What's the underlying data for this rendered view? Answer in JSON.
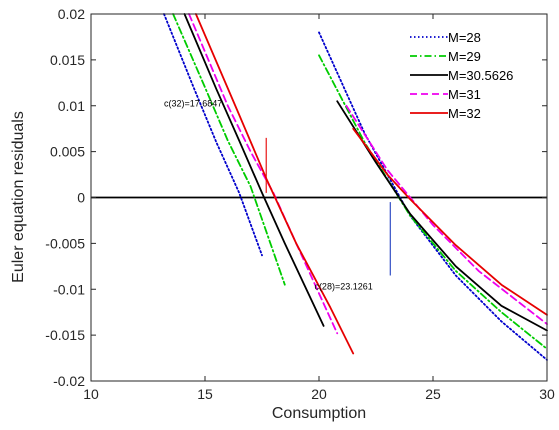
{
  "chart_data": {
    "type": "line",
    "xlabel": "Consumption",
    "ylabel": "Euler equation residuals",
    "xlim": [
      10,
      30
    ],
    "ylim": [
      -0.02,
      0.02
    ],
    "x_ticks": [
      10,
      15,
      20,
      25,
      30
    ],
    "y_ticks": [
      -0.02,
      -0.015,
      -0.01,
      -0.005,
      0,
      0.005,
      0.01,
      0.015,
      0.02
    ],
    "x_tick_labels": [
      "10",
      "15",
      "20",
      "25",
      "30"
    ],
    "y_tick_labels": [
      "-0.02",
      "-0.015",
      "-0.01",
      "-0.005",
      "0",
      "0.005",
      "0.01",
      "0.015",
      "0.02"
    ],
    "grid": false,
    "legend_position": "top-right",
    "zero_line": 0,
    "series": [
      {
        "name": "M=28",
        "color": "#0000cc",
        "dash": "dotted",
        "segments": [
          {
            "x": [
              13.2,
              14.5,
              15.5,
              16.5,
              17.5
            ],
            "y": [
              0.02,
              0.012,
              0.006,
              0.0005,
              -0.0063
            ]
          },
          {
            "x": [
              20.0,
              22.0,
              24.0,
              26.0,
              28.0,
              30.0
            ],
            "y": [
              0.018,
              0.007,
              -0.002,
              -0.0085,
              -0.0135,
              -0.0177
            ]
          }
        ]
      },
      {
        "name": "M=29",
        "color": "#00cc00",
        "dash": "dashdot",
        "segments": [
          {
            "x": [
              13.6,
              15.0,
              16.0,
              17.0,
              18.5
            ],
            "y": [
              0.02,
              0.012,
              0.0062,
              0.0012,
              -0.0095
            ]
          },
          {
            "x": [
              20.0,
              22.0,
              24.0,
              26.0,
              28.0,
              30.0
            ],
            "y": [
              0.0155,
              0.006,
              -0.002,
              -0.008,
              -0.0125,
              -0.0165
            ]
          }
        ]
      },
      {
        "name": "M=30.5626",
        "color": "#000000",
        "dash": "solid",
        "segments": [
          {
            "x": [
              14.1,
              15.5,
              16.5,
              17.5,
              18.5,
              20.2
            ],
            "y": [
              0.02,
              0.0118,
              0.0062,
              0.0005,
              -0.005,
              -0.014
            ]
          },
          {
            "x": [
              20.8,
              22.5,
              24.0,
              26.0,
              28.0,
              30.0
            ],
            "y": [
              0.0105,
              0.0038,
              -0.0018,
              -0.0075,
              -0.0118,
              -0.0145
            ]
          }
        ]
      },
      {
        "name": "M=31",
        "color": "#ee00ee",
        "dash": "dashed",
        "segments": [
          {
            "x": [
              14.3,
              16.0,
              17.0,
              18.0,
              19.0,
              20.8
            ],
            "y": [
              0.02,
              0.01,
              0.005,
              0.0005,
              -0.005,
              -0.0148
            ]
          },
          {
            "x": [
              21.2,
              23.0,
              25.0,
              27.0,
              30.0
            ],
            "y": [
              0.01,
              0.003,
              -0.003,
              -0.008,
              -0.0138
            ]
          }
        ]
      },
      {
        "name": "M=32",
        "color": "#e60000",
        "dash": "solid",
        "segments": [
          {
            "x": [
              14.6,
              16.5,
              17.7,
              19.0,
              20.5,
              21.5
            ],
            "y": [
              0.02,
              0.009,
              0.002,
              -0.005,
              -0.012,
              -0.017
            ]
          },
          {
            "x": [
              21.5,
              23.0,
              24.0,
              26.0,
              28.0,
              30.0
            ],
            "y": [
              0.0075,
              0.0025,
              -0.0002,
              -0.0052,
              -0.0095,
              -0.0128
            ]
          }
        ]
      }
    ],
    "annotations": [
      {
        "text": "c(32)=17.6847",
        "x": 17.6847,
        "y_from": 0.0065,
        "y_to": 0.0005,
        "color": "#e60000",
        "label_x": 13.2,
        "label_y": 0.0099
      },
      {
        "text": "c(28)=23.1261",
        "x": 23.1261,
        "y_from": -0.0005,
        "y_to": -0.0085,
        "color": "#1f3fbf",
        "label_x": 19.8,
        "label_y": -0.01
      }
    ]
  }
}
